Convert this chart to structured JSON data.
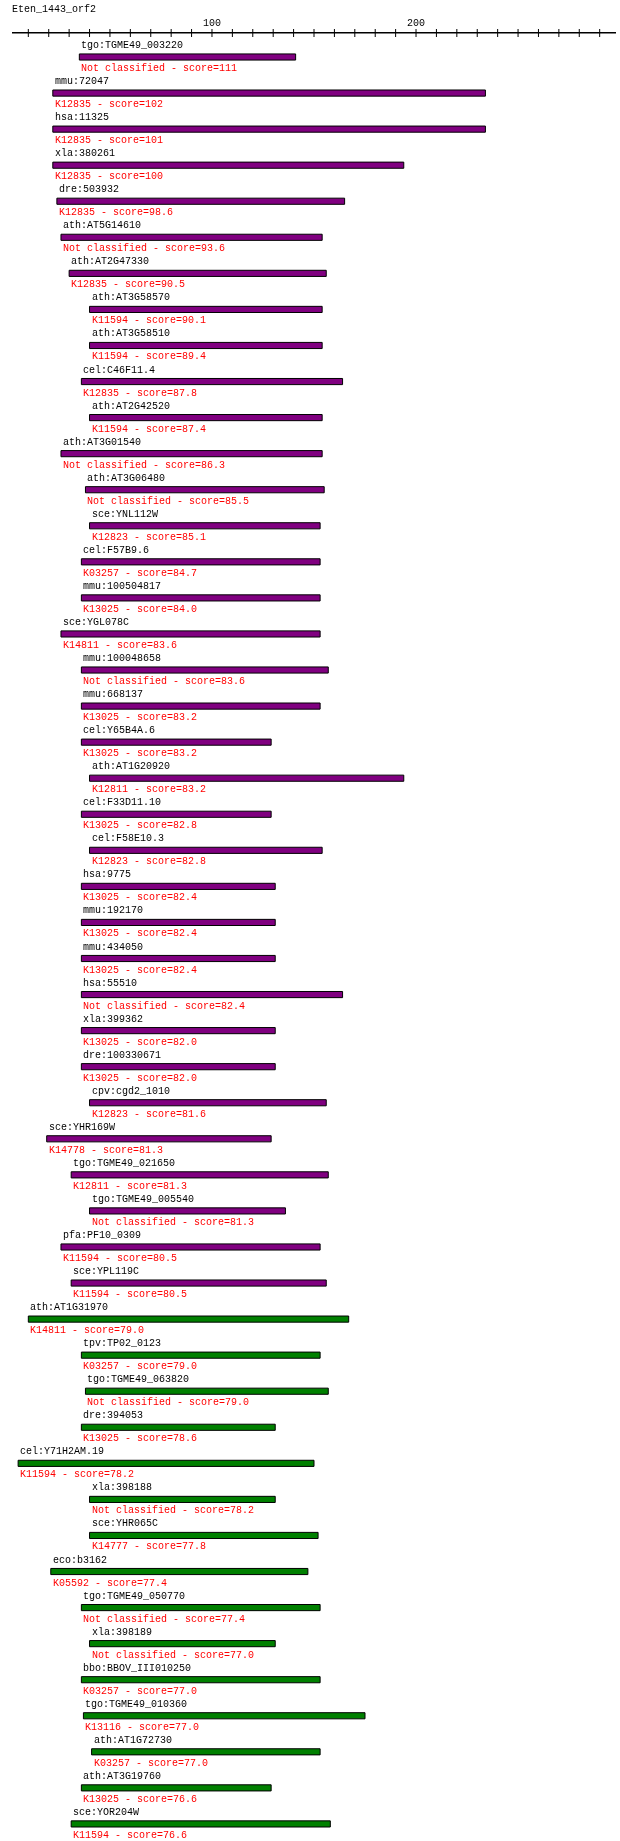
{
  "chart_data": {
    "type": "bar",
    "orientation": "horizontal",
    "title": "Eten_1443_orf2",
    "categories": [
      "tgo:TGME49_003220",
      "mmu:72047",
      "hsa:11325",
      "xla:380261",
      "dre:503932",
      "ath:AT5G14610",
      "ath:AT2G47330",
      "ath:AT3G58570",
      "ath:AT3G58510",
      "cel:C46F11.4",
      "ath:AT2G42520",
      "ath:AT3G01540",
      "ath:AT3G06480",
      "sce:YNL112W",
      "cel:F57B9.6",
      "mmu:100504817",
      "sce:YGL078C",
      "mmu:100048658",
      "mmu:668137",
      "cel:Y65B4A.6",
      "ath:AT1G20920",
      "cel:F33D11.10",
      "cel:F58E10.3",
      "hsa:9775",
      "mmu:192170",
      "mmu:434050",
      "hsa:55510",
      "xla:399362",
      "dre:100330671",
      "cpv:cgd2_1010",
      "sce:YHR169W",
      "tgo:TGME49_021650",
      "tgo:TGME49_005540",
      "pfa:PF10_0309",
      "sce:YPL119C",
      "ath:AT1G31970",
      "tpv:TP02_0123",
      "tgo:TGME49_063820",
      "dre:394053",
      "cel:Y71H2AM.19",
      "xla:398188",
      "sce:YHR065C",
      "eco:b3162",
      "tgo:TGME49_050770",
      "xla:398189",
      "bbo:BBOV_III010250",
      "tgo:TGME49_010360",
      "ath:AT1G72730",
      "ath:AT3G19760",
      "sce:YOR204W"
    ],
    "base": [
      35,
      22,
      22,
      22,
      24,
      26,
      30,
      40,
      40,
      36,
      40,
      26,
      38,
      40,
      36,
      36,
      26,
      36,
      36,
      36,
      40,
      36,
      40,
      36,
      36,
      36,
      36,
      36,
      36,
      40,
      19,
      31,
      40,
      26,
      31,
      10,
      36,
      38,
      36,
      5,
      40,
      40,
      21,
      36,
      40,
      36,
      37,
      41,
      36,
      31
    ],
    "values": [
      106,
      212,
      212,
      172,
      141,
      128,
      126,
      114,
      114,
      128,
      114,
      128,
      117,
      113,
      117,
      117,
      127,
      121,
      117,
      93,
      154,
      93,
      114,
      95,
      95,
      95,
      128,
      95,
      95,
      116,
      110,
      126,
      96,
      127,
      125,
      157,
      117,
      119,
      95,
      145,
      91,
      112,
      126,
      117,
      91,
      117,
      138,
      112,
      93,
      127
    ],
    "colors": [
      "#800080",
      "#800080",
      "#800080",
      "#800080",
      "#800080",
      "#800080",
      "#800080",
      "#800080",
      "#800080",
      "#800080",
      "#800080",
      "#800080",
      "#800080",
      "#800080",
      "#800080",
      "#800080",
      "#800080",
      "#800080",
      "#800080",
      "#800080",
      "#800080",
      "#800080",
      "#800080",
      "#800080",
      "#800080",
      "#800080",
      "#800080",
      "#800080",
      "#800080",
      "#800080",
      "#800080",
      "#800080",
      "#800080",
      "#800080",
      "#800080",
      "#008000",
      "#008000",
      "#008000",
      "#008000",
      "#008000",
      "#008000",
      "#008000",
      "#008000",
      "#008000",
      "#008000",
      "#008000",
      "#008000",
      "#008000",
      "#008000",
      "#008000"
    ],
    "xlim": [
      2,
      298
    ],
    "xticks": [
      {
        "value": 10,
        "label": null
      },
      {
        "value": 20,
        "label": null
      },
      {
        "value": 30,
        "label": null
      },
      {
        "value": 40,
        "label": null
      },
      {
        "value": 50,
        "label": null
      },
      {
        "value": 60,
        "label": null
      },
      {
        "value": 70,
        "label": null
      },
      {
        "value": 80,
        "label": null
      },
      {
        "value": 90,
        "label": null
      },
      100,
      {
        "value": 110,
        "label": null
      },
      {
        "value": 120,
        "label": null
      },
      {
        "value": 130,
        "label": null
      },
      {
        "value": 140,
        "label": null
      },
      {
        "value": 150,
        "label": null
      },
      {
        "value": 160,
        "label": null
      },
      {
        "value": 170,
        "label": null
      },
      {
        "value": 180,
        "label": null
      },
      {
        "value": 190,
        "label": null
      },
      200,
      {
        "value": 210,
        "label": null
      },
      {
        "value": 220,
        "label": null
      },
      {
        "value": 230,
        "label": null
      },
      {
        "value": 240,
        "label": null
      },
      {
        "value": 250,
        "label": null
      },
      {
        "value": 260,
        "label": null
      },
      {
        "value": 270,
        "label": null
      },
      {
        "value": 280,
        "label": null
      },
      {
        "value": 290,
        "label": null
      }
    ],
    "annotations": [
      {
        "text": "Not classified - score=111",
        "x": 35,
        "y": "tgo:TGME49_003220"
      },
      {
        "text": "K12835 - score=102",
        "x": 22,
        "y": "mmu:72047"
      },
      {
        "text": "K12835 - score=101",
        "x": 22,
        "y": "hsa:11325"
      },
      {
        "text": "K12835 - score=100",
        "x": 22,
        "y": "xla:380261"
      },
      {
        "text": "K12835 - score=98.6",
        "x": 24,
        "y": "dre:503932"
      },
      {
        "text": "Not classified - score=93.6",
        "x": 26,
        "y": "ath:AT5G14610"
      },
      {
        "text": "K12835 - score=90.5",
        "x": 30,
        "y": "ath:AT2G47330"
      },
      {
        "text": "K11594 - score=90.1",
        "x": 40,
        "y": "ath:AT3G58570"
      },
      {
        "text": "K11594 - score=89.4",
        "x": 40,
        "y": "ath:AT3G58510"
      },
      {
        "text": "K12835 - score=87.8",
        "x": 36,
        "y": "cel:C46F11.4"
      },
      {
        "text": "K11594 - score=87.4",
        "x": 40,
        "y": "ath:AT2G42520"
      },
      {
        "text": "Not classified - score=86.3",
        "x": 26,
        "y": "ath:AT3G01540"
      },
      {
        "text": "Not classified - score=85.5",
        "x": 38,
        "y": "ath:AT3G06480"
      },
      {
        "text": "K12823 - score=85.1",
        "x": 40,
        "y": "sce:YNL112W"
      },
      {
        "text": "K03257 - score=84.7",
        "x": 36,
        "y": "cel:F57B9.6"
      },
      {
        "text": "K13025 - score=84.0",
        "x": 36,
        "y": "mmu:100504817"
      },
      {
        "text": "K14811 - score=83.6",
        "x": 26,
        "y": "sce:YGL078C"
      },
      {
        "text": "Not classified - score=83.6",
        "x": 36,
        "y": "mmu:100048658"
      },
      {
        "text": "K13025 - score=83.2",
        "x": 36,
        "y": "mmu:668137"
      },
      {
        "text": "K13025 - score=83.2",
        "x": 36,
        "y": "cel:Y65B4A.6"
      },
      {
        "text": "K12811 - score=83.2",
        "x": 40,
        "y": "ath:AT1G20920"
      },
      {
        "text": "K13025 - score=82.8",
        "x": 36,
        "y": "cel:F33D11.10"
      },
      {
        "text": "K12823 - score=82.8",
        "x": 40,
        "y": "cel:F58E10.3"
      },
      {
        "text": "K13025 - score=82.4",
        "x": 36,
        "y": "hsa:9775"
      },
      {
        "text": "K13025 - score=82.4",
        "x": 36,
        "y": "mmu:192170"
      },
      {
        "text": "K13025 - score=82.4",
        "x": 36,
        "y": "mmu:434050"
      },
      {
        "text": "Not classified - score=82.4",
        "x": 36,
        "y": "hsa:55510"
      },
      {
        "text": "K13025 - score=82.0",
        "x": 36,
        "y": "xla:399362"
      },
      {
        "text": "K13025 - score=82.0",
        "x": 36,
        "y": "dre:100330671"
      },
      {
        "text": "K12823 - score=81.6",
        "x": 40,
        "y": "cpv:cgd2_1010"
      },
      {
        "text": "K14778 - score=81.3",
        "x": 19,
        "y": "sce:YHR169W"
      },
      {
        "text": "K12811 - score=81.3",
        "x": 31,
        "y": "tgo:TGME49_021650"
      },
      {
        "text": "Not classified - score=81.3",
        "x": 40,
        "y": "tgo:TGME49_005540"
      },
      {
        "text": "K11594 - score=80.5",
        "x": 26,
        "y": "pfa:PF10_0309"
      },
      {
        "text": "K11594 - score=80.5",
        "x": 31,
        "y": "sce:YPL119C"
      },
      {
        "text": "K14811 - score=79.0",
        "x": 10,
        "y": "ath:AT1G31970"
      },
      {
        "text": "K03257 - score=79.0",
        "x": 36,
        "y": "tpv:TP02_0123"
      },
      {
        "text": "Not classified - score=79.0",
        "x": 38,
        "y": "tgo:TGME49_063820"
      },
      {
        "text": "K13025 - score=78.6",
        "x": 36,
        "y": "dre:394053"
      },
      {
        "text": "K11594 - score=78.2",
        "x": 5,
        "y": "cel:Y71H2AM.19"
      },
      {
        "text": "Not classified - score=78.2",
        "x": 40,
        "y": "xla:398188"
      },
      {
        "text": "K14777 - score=77.8",
        "x": 40,
        "y": "sce:YHR065C"
      },
      {
        "text": "K05592 - score=77.4",
        "x": 21,
        "y": "eco:b3162"
      },
      {
        "text": "Not classified - score=77.4",
        "x": 36,
        "y": "tgo:TGME49_050770"
      },
      {
        "text": "Not classified - score=77.0",
        "x": 40,
        "y": "xla:398189"
      },
      {
        "text": "K03257 - score=77.0",
        "x": 36,
        "y": "bbo:BBOV_III010250"
      },
      {
        "text": "K13116 - score=77.0",
        "x": 37,
        "y": "tgo:TGME49_010360"
      },
      {
        "text": "K03257 - score=77.0",
        "x": 41,
        "y": "ath:AT1G72730"
      },
      {
        "text": "K13025 - score=76.6",
        "x": 36,
        "y": "ath:AT3G19760"
      },
      {
        "text": "K11594 - score=76.6",
        "x": 31,
        "y": "sce:YOR204W"
      }
    ]
  }
}
